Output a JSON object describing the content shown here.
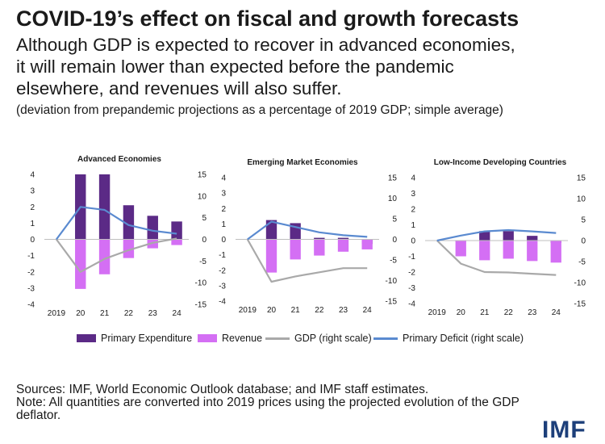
{
  "title": "COVID-19’s effect on fiscal and growth forecasts",
  "subtitle_lines": [
    "Although GDP is expected to recover in advanced economies,",
    "it will remain lower than expected before the pandemic",
    "elsewhere, and revenues will also suffer."
  ],
  "note_range": "(deviation from prepandemic projections as a percentage of 2019 GDP; simple average)",
  "colors": {
    "expenditure": "#5b2a86",
    "revenue": "#d46ff4",
    "gdp": "#a9a9a9",
    "deficit": "#5a8ad0"
  },
  "legend": {
    "expenditure": "Primary Expenditure",
    "revenue": "Revenue",
    "gdp": "GDP (right scale)",
    "deficit": "Primary Deficit (right scale)"
  },
  "chart_data": [
    {
      "type": "bar",
      "title": "Advanced Economies",
      "categories": [
        "2019",
        "20",
        "21",
        "22",
        "23",
        "24"
      ],
      "ylim": [
        -4,
        4
      ],
      "y_ticks": [
        -4,
        -3,
        -2,
        -1,
        0,
        1,
        2,
        3,
        4
      ],
      "y2lim": [
        -15,
        15
      ],
      "y2_ticks": [
        -15,
        -10,
        -5,
        0,
        5,
        10,
        15
      ],
      "series": [
        {
          "name": "Primary Expenditure",
          "kind": "bar",
          "axis": "left",
          "values": [
            0,
            4.0,
            4.0,
            2.1,
            1.45,
            1.1
          ]
        },
        {
          "name": "Revenue",
          "kind": "bar",
          "axis": "left",
          "values": [
            0,
            -3.05,
            -2.15,
            -1.15,
            -0.55,
            -0.35
          ]
        },
        {
          "name": "GDP (right scale)",
          "kind": "line",
          "axis": "right",
          "values": [
            0,
            -7.5,
            -4.5,
            -2.5,
            -0.8,
            0.2
          ]
        },
        {
          "name": "Primary Deficit (right scale)",
          "kind": "line",
          "axis": "right",
          "values": [
            0,
            7.5,
            6.8,
            3.3,
            2.0,
            1.3
          ]
        }
      ]
    },
    {
      "type": "bar",
      "title": "Emerging Market Economies",
      "categories": [
        "2019",
        "20",
        "21",
        "22",
        "23",
        "24"
      ],
      "ylim": [
        -4,
        4
      ],
      "y_ticks": [
        -4,
        -3,
        -2,
        -1,
        0,
        1,
        2,
        3,
        4
      ],
      "y2lim": [
        -15,
        15
      ],
      "y2_ticks": [
        -15,
        -10,
        -5,
        0,
        5,
        10,
        15
      ],
      "series": [
        {
          "name": "Primary Expenditure",
          "kind": "bar",
          "axis": "left",
          "values": [
            0,
            1.25,
            1.05,
            0.1,
            0.1,
            -0.3
          ]
        },
        {
          "name": "Revenue",
          "kind": "bar",
          "axis": "left",
          "values": [
            0,
            -2.15,
            -1.3,
            -1.05,
            -0.8,
            -0.65
          ]
        },
        {
          "name": "GDP (right scale)",
          "kind": "line",
          "axis": "right",
          "values": [
            0,
            -10.3,
            -9.0,
            -8.0,
            -7.0,
            -7.0
          ]
        },
        {
          "name": "Primary Deficit (right scale)",
          "kind": "line",
          "axis": "right",
          "values": [
            0,
            4.3,
            3.0,
            1.7,
            1.0,
            0.6
          ]
        }
      ]
    },
    {
      "type": "bar",
      "title": "Low-Income Developing Countries",
      "categories": [
        "2019",
        "20",
        "21",
        "22",
        "23",
        "24"
      ],
      "ylim": [
        -4,
        4
      ],
      "y_ticks": [
        -4,
        -3,
        -2,
        -1,
        0,
        1,
        2,
        3,
        4
      ],
      "y2lim": [
        -15,
        15
      ],
      "y2_ticks": [
        -15,
        -10,
        -5,
        0,
        5,
        10,
        15
      ],
      "series": [
        {
          "name": "Primary Expenditure",
          "kind": "bar",
          "axis": "left",
          "values": [
            0,
            -0.05,
            0.6,
            0.6,
            0.3,
            -0.15
          ]
        },
        {
          "name": "Revenue",
          "kind": "bar",
          "axis": "left",
          "values": [
            0,
            -1.0,
            -1.25,
            -1.15,
            -1.3,
            -1.4
          ]
        },
        {
          "name": "GDP (right scale)",
          "kind": "line",
          "axis": "right",
          "values": [
            0,
            -5.5,
            -7.5,
            -7.6,
            -7.9,
            -8.2
          ]
        },
        {
          "name": "Primary Deficit (right scale)",
          "kind": "line",
          "axis": "right",
          "values": [
            0,
            1.2,
            2.2,
            2.5,
            2.2,
            1.8
          ]
        }
      ]
    }
  ],
  "sources_lines": [
    "Sources: IMF, World Economic Outlook database; and IMF staff estimates.",
    "Note: All quantities are converted into 2019 prices using the projected evolution of the GDP",
    "deflator."
  ],
  "logo": "IMF"
}
